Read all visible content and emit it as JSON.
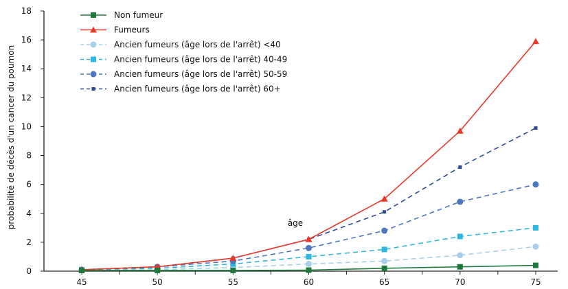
{
  "chart_data": {
    "type": "line",
    "title": "",
    "xlabel": "",
    "ylabel": "probabilité de décès d'un cancer du poumon",
    "x": [
      45,
      50,
      55,
      60,
      65,
      70,
      75
    ],
    "xticks": [
      "45",
      "50",
      "55",
      "60",
      "65",
      "70",
      "75"
    ],
    "yticks": [
      "0",
      "2",
      "4",
      "6",
      "8",
      "10",
      "12",
      "14",
      "16",
      "18"
    ],
    "ylim": [
      0,
      18
    ],
    "grid": false,
    "legend_position": "top-left",
    "annotation": "âge",
    "series": [
      {
        "name": "Non fumeur",
        "color": "#1e7a3c",
        "marker": "square",
        "dash": "solid",
        "values": [
          0.05,
          0.05,
          0.05,
          0.07,
          0.2,
          0.3,
          0.4
        ]
      },
      {
        "name": "Fumeurs",
        "color": "#e8392a",
        "marker": "triangle",
        "dash": "solid",
        "values": [
          0.1,
          0.3,
          0.9,
          2.2,
          5.0,
          9.7,
          15.9
        ]
      },
      {
        "name": "Ancien fumeurs (âge lors de l'arrêt) <40",
        "color": "#a8d0ea",
        "marker": "circle",
        "dash": "dashed",
        "values": [
          0.05,
          0.1,
          0.25,
          0.5,
          0.7,
          1.1,
          1.7
        ]
      },
      {
        "name": "Ancien fumeurs (âge lors de l'arrêt) 40-49",
        "color": "#2fb7e0",
        "marker": "square",
        "dash": "dashed",
        "values": [
          0.1,
          0.2,
          0.5,
          1.0,
          1.5,
          2.4,
          3.0
        ]
      },
      {
        "name": "Ancien fumeurs (âge lors de l'arrêt) 50-59",
        "color": "#4e76c0",
        "marker": "circle",
        "dash": "dashed",
        "values": [
          0.1,
          0.3,
          0.7,
          1.6,
          2.8,
          4.8,
          6.0
        ]
      },
      {
        "name": "Ancien fumeurs (âge lors de l'arrêt) 60+",
        "color": "#2c4a96",
        "marker": "small-square",
        "dash": "dashed",
        "values": [
          0.1,
          0.3,
          0.9,
          2.2,
          4.1,
          7.2,
          9.9
        ]
      }
    ]
  }
}
